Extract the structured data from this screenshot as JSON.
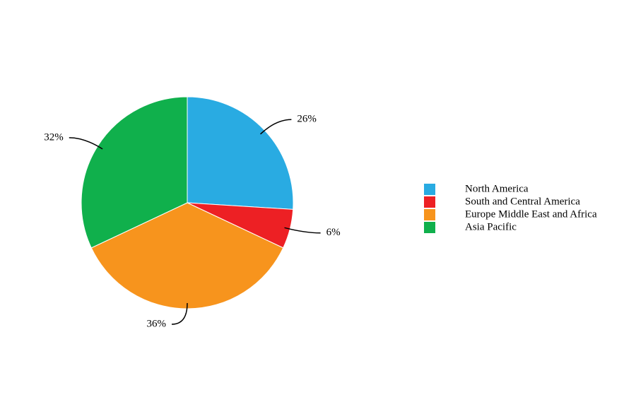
{
  "chart_data": {
    "type": "pie",
    "categories": [
      "North America",
      "South and Central America",
      "Europe Middle East and Africa",
      "Asia Pacific"
    ],
    "values": [
      26,
      6,
      36,
      32
    ],
    "value_labels": [
      "26%",
      "6%",
      "36%",
      "32%"
    ],
    "colors": [
      "#29abe2",
      "#ed2024",
      "#f7941d",
      "#10b04c"
    ],
    "legend": "right"
  }
}
